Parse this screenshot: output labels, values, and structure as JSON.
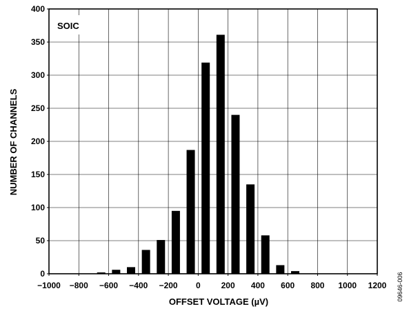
{
  "chart_data": {
    "type": "bar",
    "inset_label": "SOIC",
    "xlabel": "OFFSET VOLTAGE (µV)",
    "ylabel": "NUMBER OF CHANNELS",
    "xlim": [
      -1000,
      1200
    ],
    "ylim": [
      0,
      400
    ],
    "xticks": [
      -1000,
      -800,
      -600,
      -400,
      -200,
      0,
      200,
      400,
      600,
      800,
      1000,
      1200
    ],
    "xtick_labels": [
      "−1000",
      "−800",
      "−600",
      "−400",
      "−200",
      "0",
      "200",
      "400",
      "600",
      "800",
      "1000",
      "1200"
    ],
    "yticks": [
      0,
      50,
      100,
      150,
      200,
      250,
      300,
      350,
      400
    ],
    "grid": true,
    "bar_color": "#000000",
    "x": [
      -650,
      -550,
      -450,
      -350,
      -250,
      -150,
      -50,
      50,
      150,
      250,
      350,
      450,
      550,
      650
    ],
    "values": [
      2,
      6,
      10,
      36,
      51,
      95,
      187,
      319,
      361,
      240,
      135,
      58,
      13,
      4
    ]
  },
  "figure_id": "09646-006"
}
